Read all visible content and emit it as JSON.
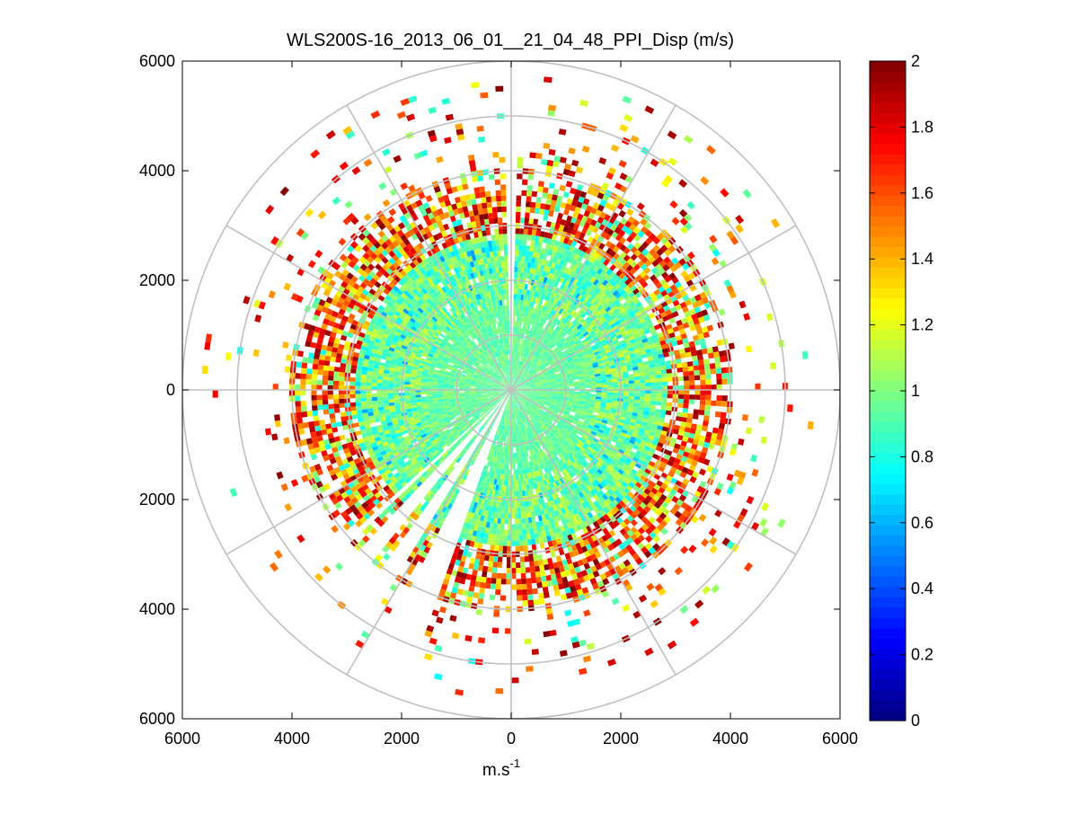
{
  "chart_data": {
    "type": "heatmap",
    "subtype": "polar-ppi-scan",
    "title": "WLS200S-16_2013_06_01__21_04_48_PPI_Disp (m/s)",
    "xlabel": "m.s",
    "xlabel_superscript": "-1",
    "ylabel": "",
    "xlim": [
      -6000,
      6000
    ],
    "ylim": [
      -6000,
      6000
    ],
    "x_ticks": [
      -6000,
      -4000,
      -2000,
      0,
      2000,
      4000,
      6000
    ],
    "x_tick_labels": [
      "6000",
      "4000",
      "2000",
      "0",
      "2000",
      "4000",
      "6000"
    ],
    "y_ticks": [
      6000,
      4000,
      2000,
      0,
      -2000,
      -4000,
      -6000
    ],
    "y_tick_labels": [
      "6000",
      "4000",
      "2000",
      "0",
      "2000",
      "4000",
      "6000"
    ],
    "polar_grid": {
      "ring_radii": [
        1000,
        2000,
        3000,
        4000,
        5000,
        6000
      ],
      "spoke_angles_deg": [
        0,
        30,
        60,
        90,
        120,
        150,
        180,
        210,
        240,
        270,
        300,
        330
      ]
    },
    "colorbar": {
      "colormap": "jet",
      "range": [
        0,
        2
      ],
      "ticks": [
        0,
        0.2,
        0.4,
        0.6,
        0.8,
        1,
        1.2,
        1.4,
        1.6,
        1.8,
        2
      ],
      "tick_labels": [
        "0",
        "0.2",
        "0.4",
        "0.6",
        "0.8",
        "1",
        "1.2",
        "1.4",
        "1.6",
        "1.8",
        "2"
      ]
    },
    "field_description": {
      "max_range_m": 6000,
      "gate_spacing_m": 100,
      "beam_width_deg": 1.5,
      "core_value_range_to_1500m": [
        0.85,
        1.05
      ],
      "mid_value_range_1500_to_2800m": [
        0.8,
        1.15
      ],
      "outer_value_range_2800_to_4000m": [
        1.3,
        2.0
      ],
      "edge_sparse_beyond_m": 4000,
      "gap_sectors_deg_from_north_cw": [
        [
          -2,
          2
        ],
        [
          200,
          207
        ],
        [
          211,
          216
        ],
        [
          219,
          223
        ],
        [
          226,
          228
        ]
      ]
    }
  }
}
